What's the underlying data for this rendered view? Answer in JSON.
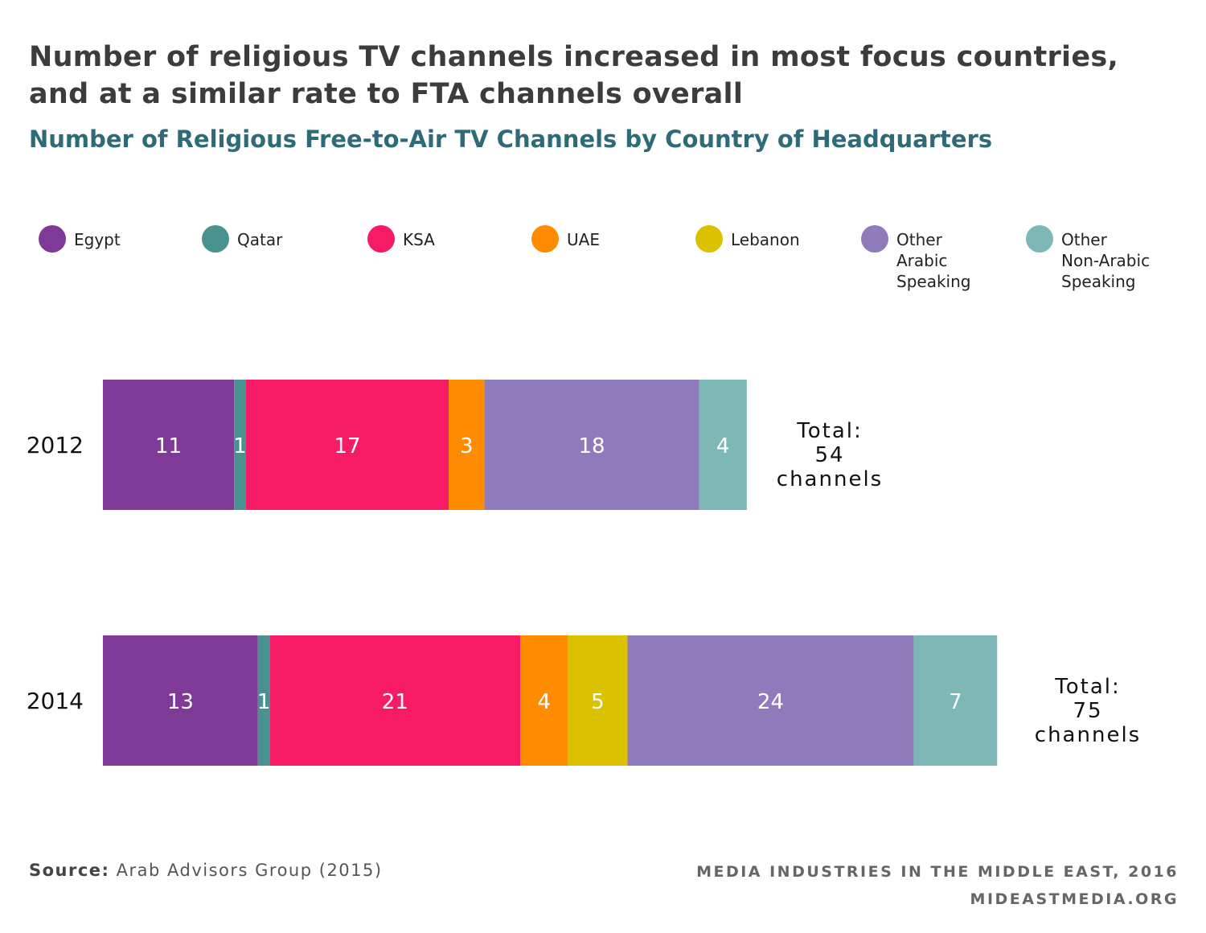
{
  "title": "Number of religious TV channels increased in most focus countries, and at a similar rate to FTA channels overall",
  "subtitle": "Number of Religious Free-to-Air TV Channels by Country of Headquarters",
  "legend": [
    {
      "label": "Egypt",
      "color": "#7f3a97"
    },
    {
      "label": "Qatar",
      "color": "#4a928f"
    },
    {
      "label": "KSA",
      "color": "#f71b66"
    },
    {
      "label": "UAE",
      "color": "#ff8c00"
    },
    {
      "label": "Lebanon",
      "color": "#dcc100"
    },
    {
      "label": "Other\n Arabic\nSpeaking",
      "color": "#8f7bbb"
    },
    {
      "label": "Other\nNon-Arabic\nSpeaking",
      "color": "#7db8b7"
    }
  ],
  "chart_data": {
    "type": "bar",
    "orientation": "horizontal",
    "stacked": true,
    "categories": [
      "2012",
      "2014"
    ],
    "series": [
      {
        "name": "Egypt",
        "values": [
          11,
          13
        ],
        "color": "#7f3a97"
      },
      {
        "name": "Qatar",
        "values": [
          1,
          1
        ],
        "color": "#4a928f"
      },
      {
        "name": "KSA",
        "values": [
          17,
          21
        ],
        "color": "#f71b66"
      },
      {
        "name": "UAE",
        "values": [
          3,
          4
        ],
        "color": "#ff8c00"
      },
      {
        "name": "Lebanon",
        "values": [
          0,
          5
        ],
        "color": "#dcc100"
      },
      {
        "name": "Other Arabic Speaking",
        "values": [
          18,
          24
        ],
        "color": "#8f7bbb"
      },
      {
        "name": "Other Non-Arabic Speaking",
        "values": [
          4,
          7
        ],
        "color": "#7db8b7"
      }
    ],
    "totals": [
      {
        "line1": "Total:",
        "line2": "54",
        "line3": "channels"
      },
      {
        "line1": "Total:",
        "line2": "75",
        "line3": "channels"
      }
    ]
  },
  "source": {
    "label": "Source:",
    "text": "Arab Advisors Group (2015)"
  },
  "footer": {
    "line1": "MEDIA INDUSTRIES IN THE MIDDLE EAST, 2016",
    "line2": "MIDEASTMEDIA.ORG"
  }
}
